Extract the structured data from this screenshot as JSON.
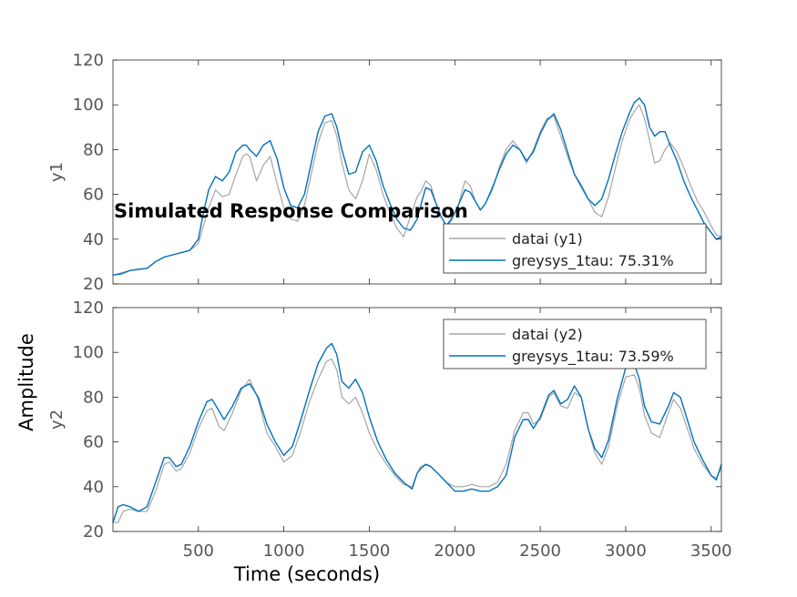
{
  "chart_data": {
    "type": "line",
    "title": "Simulated Response Comparison",
    "xlabel": "Time (seconds)",
    "ylabel": "Amplitude",
    "xlim": [
      0,
      3560
    ],
    "xticks": [
      500,
      1000,
      1500,
      2000,
      2500,
      3000,
      3500
    ],
    "colors": {
      "data": "#a6a6a6",
      "model": "#0072bd",
      "axes": "#555555"
    },
    "subplots": [
      {
        "ylabel": "y1",
        "ylim": [
          20,
          120
        ],
        "yticks": [
          20,
          40,
          60,
          80,
          100,
          120
        ],
        "legend": "bottom-right",
        "series": [
          {
            "name": "datai (y1)",
            "role": "data",
            "x": [
              0,
              50,
              100,
              150,
              200,
              250,
              300,
              350,
              400,
              450,
              500,
              530,
              560,
              600,
              640,
              680,
              720,
              760,
              780,
              800,
              840,
              880,
              920,
              960,
              1000,
              1040,
              1080,
              1120,
              1160,
              1200,
              1240,
              1280,
              1310,
              1340,
              1380,
              1420,
              1460,
              1500,
              1540,
              1580,
              1620,
              1660,
              1700,
              1740,
              1780,
              1800,
              1830,
              1860,
              1890,
              1920,
              1950,
              1980,
              2020,
              2060,
              2090,
              2120,
              2150,
              2180,
              2220,
              2260,
              2300,
              2340,
              2380,
              2420,
              2460,
              2500,
              2540,
              2580,
              2620,
              2660,
              2700,
              2740,
              2780,
              2820,
              2860,
              2900,
              2940,
              2980,
              3020,
              3050,
              3080,
              3110,
              3140,
              3170,
              3200,
              3230,
              3260,
              3300,
              3340,
              3380,
              3420,
              3460,
              3500,
              3530,
              3560
            ],
            "y": [
              24,
              25,
              26,
              26.5,
              27,
              30,
              32,
              33,
              34,
              35,
              38,
              46,
              54,
              62,
              59,
              60,
              69,
              77,
              78,
              77,
              66,
              73,
              77,
              65,
              54,
              49,
              48,
              55,
              69,
              83,
              92,
              93,
              86,
              74,
              62,
              58,
              66,
              78,
              71,
              60,
              52,
              45,
              41,
              50,
              59,
              61,
              66,
              64,
              56,
              50,
              46,
              48,
              55,
              66,
              64,
              57,
              53,
              56,
              62,
              72,
              80,
              84,
              80,
              74,
              80,
              88,
              94,
              95,
              86,
              77,
              69,
              63,
              58,
              52,
              50,
              59,
              72,
              84,
              93,
              97,
              100,
              94,
              84,
              74,
              75,
              80,
              83,
              79,
              72,
              64,
              57,
              52,
              46,
              42,
              41
            ]
          },
          {
            "name": "greysys_1tau: 75.31%",
            "role": "model",
            "x": [
              0,
              50,
              100,
              150,
              200,
              250,
              300,
              350,
              400,
              450,
              500,
              530,
              560,
              600,
              640,
              680,
              720,
              760,
              780,
              800,
              840,
              880,
              920,
              960,
              1000,
              1040,
              1080,
              1120,
              1160,
              1200,
              1240,
              1280,
              1310,
              1340,
              1380,
              1420,
              1460,
              1500,
              1540,
              1580,
              1620,
              1660,
              1700,
              1740,
              1780,
              1800,
              1830,
              1860,
              1890,
              1920,
              1950,
              1980,
              2020,
              2060,
              2090,
              2120,
              2150,
              2180,
              2220,
              2260,
              2300,
              2340,
              2380,
              2420,
              2460,
              2500,
              2540,
              2580,
              2620,
              2660,
              2700,
              2740,
              2780,
              2820,
              2860,
              2900,
              2940,
              2980,
              3020,
              3050,
              3080,
              3110,
              3140,
              3170,
              3200,
              3230,
              3260,
              3300,
              3340,
              3380,
              3420,
              3460,
              3500,
              3530,
              3560
            ],
            "y": [
              24,
              24.5,
              26,
              26.5,
              27,
              30,
              32,
              33,
              34,
              35,
              40,
              52,
              62,
              68,
              66,
              70,
              79,
              82,
              82,
              80,
              77,
              82,
              84,
              76,
              63,
              55,
              54,
              60,
              74,
              88,
              95,
              96,
              90,
              80,
              69,
              70,
              79,
              82,
              75,
              64,
              56,
              49,
              45,
              44,
              49,
              55,
              63,
              62,
              56,
              50,
              46,
              49,
              55,
              62,
              61,
              57,
              53,
              56,
              63,
              71,
              78,
              82,
              80,
              75,
              79,
              87,
              93,
              96,
              89,
              79,
              69,
              64,
              58,
              55,
              58,
              67,
              78,
              88,
              96,
              101,
              103,
              100,
              90,
              86,
              88,
              88,
              82,
              75,
              66,
              59,
              53,
              47,
              43,
              40,
              41
            ]
          }
        ]
      },
      {
        "ylabel": "y2",
        "ylim": [
          20,
          120
        ],
        "yticks": [
          20,
          40,
          60,
          80,
          100,
          120
        ],
        "legend": "top-right",
        "series": [
          {
            "name": "datai (y2)",
            "role": "data",
            "x": [
              0,
              30,
              60,
              100,
              150,
              200,
              250,
              300,
              330,
              370,
              400,
              450,
              500,
              550,
              580,
              620,
              650,
              700,
              750,
              800,
              850,
              900,
              950,
              1000,
              1050,
              1100,
              1150,
              1200,
              1250,
              1280,
              1310,
              1340,
              1380,
              1420,
              1460,
              1500,
              1550,
              1600,
              1650,
              1700,
              1750,
              1780,
              1800,
              1830,
              1860,
              1900,
              1950,
              2000,
              2050,
              2100,
              2150,
              2200,
              2250,
              2300,
              2350,
              2400,
              2430,
              2460,
              2500,
              2550,
              2580,
              2620,
              2660,
              2700,
              2740,
              2780,
              2820,
              2860,
              2900,
              2950,
              3000,
              3050,
              3080,
              3110,
              3150,
              3200,
              3250,
              3280,
              3320,
              3360,
              3400,
              3450,
              3500,
              3530,
              3560
            ],
            "y": [
              24,
              24,
              29,
              30,
              29,
              29,
              38,
              50,
              51,
              47,
              48,
              55,
              66,
              74,
              75,
              67,
              65,
              73,
              83,
              88,
              79,
              64,
              58,
              51,
              54,
              65,
              78,
              88,
              96,
              97,
              92,
              80,
              77,
              80,
              73,
              64,
              56,
              50,
              45,
              41,
              40,
              46,
              49,
              50,
              49,
              46,
              42,
              40,
              40,
              41,
              40,
              40,
              42,
              50,
              65,
              73,
              73,
              68,
              70,
              80,
              82,
              76,
              75,
              82,
              80,
              66,
              55,
              50,
              58,
              76,
              89,
              90,
              84,
              72,
              64,
              62,
              73,
              79,
              75,
              66,
              57,
              50,
              45,
              44,
              48
            ]
          },
          {
            "name": "greysys_1tau: 73.59%",
            "role": "model",
            "x": [
              0,
              30,
              60,
              100,
              150,
              200,
              250,
              300,
              330,
              370,
              400,
              450,
              500,
              550,
              580,
              620,
              650,
              700,
              750,
              800,
              850,
              900,
              950,
              1000,
              1050,
              1100,
              1150,
              1200,
              1250,
              1280,
              1310,
              1340,
              1380,
              1420,
              1460,
              1500,
              1550,
              1600,
              1650,
              1700,
              1750,
              1780,
              1800,
              1830,
              1860,
              1900,
              1950,
              2000,
              2050,
              2100,
              2150,
              2200,
              2250,
              2300,
              2350,
              2400,
              2430,
              2460,
              2500,
              2550,
              2580,
              2620,
              2660,
              2700,
              2740,
              2780,
              2820,
              2860,
              2900,
              2950,
              3000,
              3050,
              3080,
              3110,
              3150,
              3200,
              3250,
              3280,
              3320,
              3360,
              3400,
              3450,
              3500,
              3530,
              3560
            ],
            "y": [
              24,
              31,
              32,
              31,
              29,
              31,
              42,
              53,
              53,
              49,
              50,
              58,
              69,
              78,
              79,
              74,
              70,
              76,
              84,
              86,
              80,
              68,
              60,
              54,
              58,
              70,
              83,
              95,
              102,
              104,
              99,
              87,
              84,
              88,
              82,
              71,
              60,
              52,
              46,
              42,
              39,
              46,
              48,
              50,
              49,
              46,
              42,
              38,
              38,
              39,
              38,
              38,
              40,
              45,
              62,
              70,
              70,
              66,
              71,
              81,
              83,
              77,
              79,
              85,
              80,
              66,
              57,
              53,
              61,
              79,
              93,
              95,
              88,
              76,
              69,
              68,
              76,
              82,
              80,
              70,
              60,
              52,
              45,
              43,
              50
            ]
          }
        ]
      }
    ]
  }
}
